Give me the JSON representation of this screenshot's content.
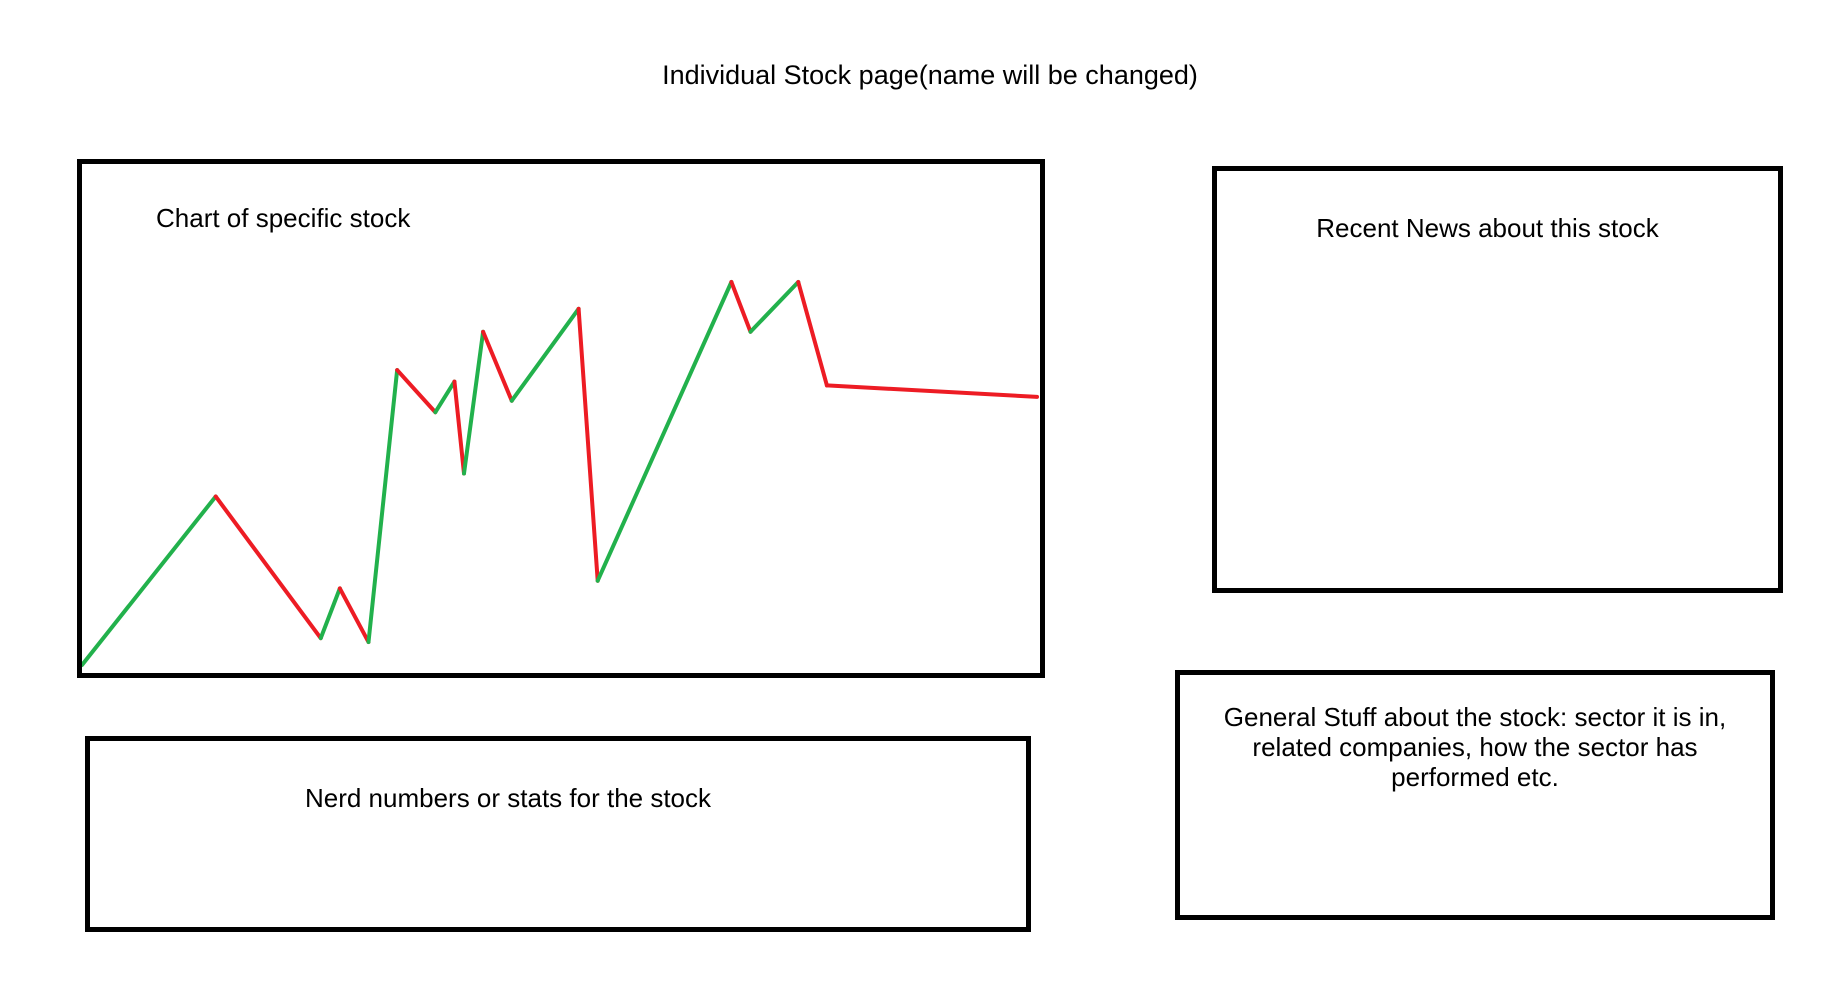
{
  "header": {
    "title": "Individual Stock page(name will be changed)"
  },
  "chart_box": {
    "label": "Chart of specific stock"
  },
  "news_box": {
    "label": "Recent News about this stock"
  },
  "stats_box": {
    "label": "Nerd numbers or stats for the stock"
  },
  "general_box": {
    "label": "General Stuff about the stock: sector it is in, related companies, how the sector has performed etc."
  },
  "colors": {
    "up": "#22b14c",
    "down": "#ed1c24",
    "border": "#000000"
  },
  "chart_data": {
    "type": "line",
    "title": "",
    "xlabel": "",
    "ylabel": "",
    "x": [
      0,
      14,
      25,
      27,
      30,
      33,
      37,
      39,
      40,
      42,
      45,
      52,
      54,
      68,
      70,
      75,
      78,
      100
    ],
    "values": [
      0,
      44,
      7,
      20,
      6,
      77,
      66,
      74,
      50,
      87,
      69,
      93,
      22,
      100,
      87,
      100,
      73,
      70
    ]
  }
}
